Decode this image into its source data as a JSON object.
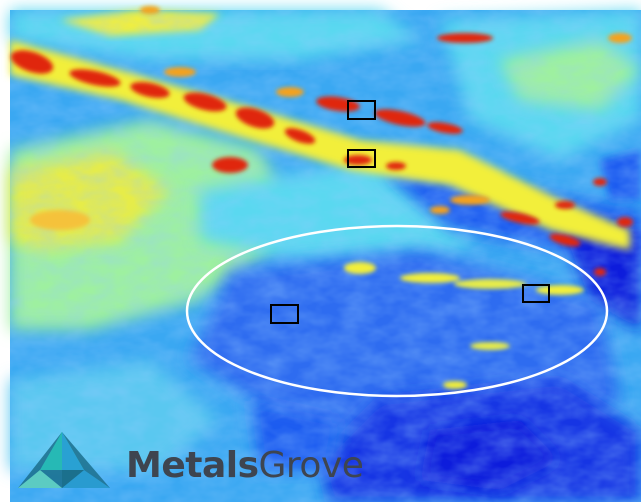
{
  "image": {
    "kind": "geophysical anomaly heat map",
    "colormap": [
      "#0a1adc",
      "#1e5cf0",
      "#3aa0f5",
      "#5ad8f0",
      "#9ef0a0",
      "#f2ef3a",
      "#f5a21e",
      "#e0280e"
    ]
  },
  "annotations": {
    "target_boxes_count": 4,
    "highlight_ellipse_color": "#ffffff",
    "box_color": "#000000"
  },
  "logo": {
    "word_bold": "Metals",
    "word_light": "Grove",
    "bold_color": "#3e4550",
    "light_color": "#3e4550",
    "mark_colors": [
      "#2a9fd6",
      "#27c0b8",
      "#1b6f8c",
      "#63d4c6"
    ]
  }
}
